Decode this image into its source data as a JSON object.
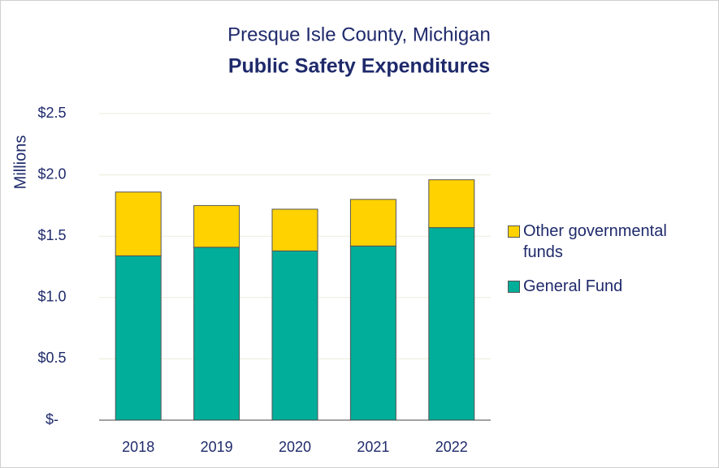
{
  "chart_data": {
    "type": "stacked-bar",
    "title": "Presque Isle County, Michigan",
    "subtitle": "Public Safety Expenditures",
    "y_label": "Millions",
    "categories": [
      "2018",
      "2019",
      "2020",
      "2021",
      "2022"
    ],
    "series": [
      {
        "name": "General Fund",
        "color": "#00ae9a",
        "values": [
          1.34,
          1.41,
          1.38,
          1.42,
          1.57
        ]
      },
      {
        "name": "Other governmental funds",
        "color": "#ffd200",
        "values": [
          0.52,
          0.34,
          0.34,
          0.38,
          0.39
        ]
      }
    ],
    "ylim": [
      0,
      2.5
    ],
    "yticks": [
      {
        "value": 0,
        "label": "$-"
      },
      {
        "value": 0.5,
        "label": "$0.5"
      },
      {
        "value": 1.0,
        "label": "$1.0"
      },
      {
        "value": 1.5,
        "label": "$1.5"
      },
      {
        "value": 2.0,
        "label": "$2.0"
      },
      {
        "value": 2.5,
        "label": "$2.5"
      }
    ],
    "grid": true,
    "legend": "right"
  }
}
